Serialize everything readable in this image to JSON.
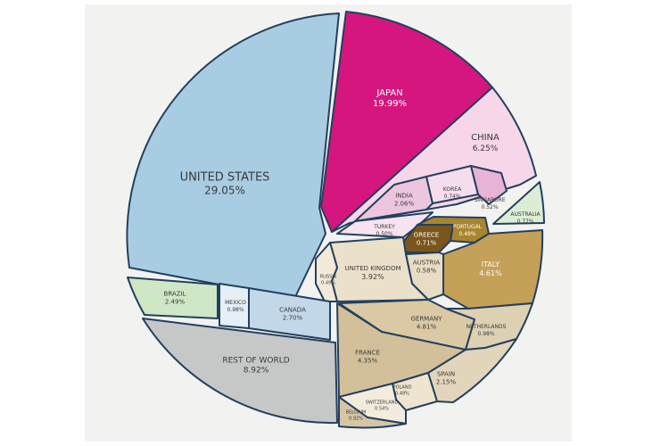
{
  "chart_data": {
    "type": "pie",
    "title": "",
    "slices": [
      {
        "key": "us",
        "name": "UNITED STATES",
        "value": 29.05,
        "value_label": "29.05%",
        "color": "#a8cde3"
      },
      {
        "key": "japan",
        "name": "JAPAN",
        "value": 19.99,
        "value_label": "19.99%",
        "color": "#d5167f"
      },
      {
        "key": "china",
        "name": "CHINA",
        "value": 6.25,
        "value_label": "6.25%",
        "color": "#f6d6e8"
      },
      {
        "key": "india",
        "name": "INDIA",
        "value": 2.06,
        "value_label": "2.06%",
        "color": "#ecc6df"
      },
      {
        "key": "korea",
        "name": "KOREA",
        "value": 0.74,
        "value_label": "0.74%",
        "color": "#f6dded"
      },
      {
        "key": "singapore",
        "name": "SINGAPORE",
        "value": 0.52,
        "value_label": "0.52%",
        "color": "#e8b3d4"
      },
      {
        "key": "turkey",
        "name": "TURKEY",
        "value": 0.5,
        "value_label": "0.50%",
        "color": "#f6e3ef"
      },
      {
        "key": "australia",
        "name": "AUSTRALIA",
        "value": 0.77,
        "value_label": "0.77%",
        "color": "#dcedd6"
      },
      {
        "key": "greece",
        "name": "GREECE",
        "value": 0.71,
        "value_label": "0.71%",
        "color": "#7a561c"
      },
      {
        "key": "portugal",
        "name": "PORTUGAL",
        "value": 0.49,
        "value_label": "0.49%",
        "color": "#a98530"
      },
      {
        "key": "italy",
        "name": "ITALY",
        "value": 4.61,
        "value_label": "4.61%",
        "color": "#c4a058"
      },
      {
        "key": "austria",
        "name": "AUSTRIA",
        "value": 0.58,
        "value_label": "0.58%",
        "color": "#e8dcc4"
      },
      {
        "key": "uk",
        "name": "UNITED KINGDOM",
        "value": 3.92,
        "value_label": "3.92%",
        "color": "#ebe0c9"
      },
      {
        "key": "russia",
        "name": "RUSSIA",
        "value": 0.49,
        "value_label": "0.49%",
        "color": "#f1ead9"
      },
      {
        "key": "germany",
        "name": "GERMANY",
        "value": 4.81,
        "value_label": "4.81%",
        "color": "#dac9a4"
      },
      {
        "key": "netherlands",
        "name": "NETHERLANDS",
        "value": 0.98,
        "value_label": "0.98%",
        "color": "#ddd0b3"
      },
      {
        "key": "france",
        "name": "FRANCE",
        "value": 4.35,
        "value_label": "4.35%",
        "color": "#d3c09a"
      },
      {
        "key": "spain",
        "name": "SPAIN",
        "value": 2.15,
        "value_label": "2.15%",
        "color": "#e2d5bb"
      },
      {
        "key": "poland",
        "name": "POLAND",
        "value": 0.49,
        "value_label": "0.49%",
        "color": "#eee4cf"
      },
      {
        "key": "switzerland",
        "name": "SWITZERLAND",
        "value": 0.54,
        "value_label": "0.54%",
        "color": "#f3ecdd"
      },
      {
        "key": "belgium",
        "name": "BELGIUM",
        "value": 0.92,
        "value_label": "0.92%",
        "color": "#d6c6a4"
      },
      {
        "key": "row",
        "name": "REST OF WORLD",
        "value": 8.92,
        "value_label": "8.92%",
        "color": "#c6c7c7"
      },
      {
        "key": "canada",
        "name": "CANADA",
        "value": 2.7,
        "value_label": "2.70%",
        "color": "#c2d7e8"
      },
      {
        "key": "mexico",
        "name": "MEXICO",
        "value": 0.98,
        "value_label": "0.98%",
        "color": "#e4eff6"
      },
      {
        "key": "brazil",
        "name": "BRAZIL",
        "value": 2.49,
        "value_label": "2.49%",
        "color": "#cfe7c5"
      }
    ]
  }
}
